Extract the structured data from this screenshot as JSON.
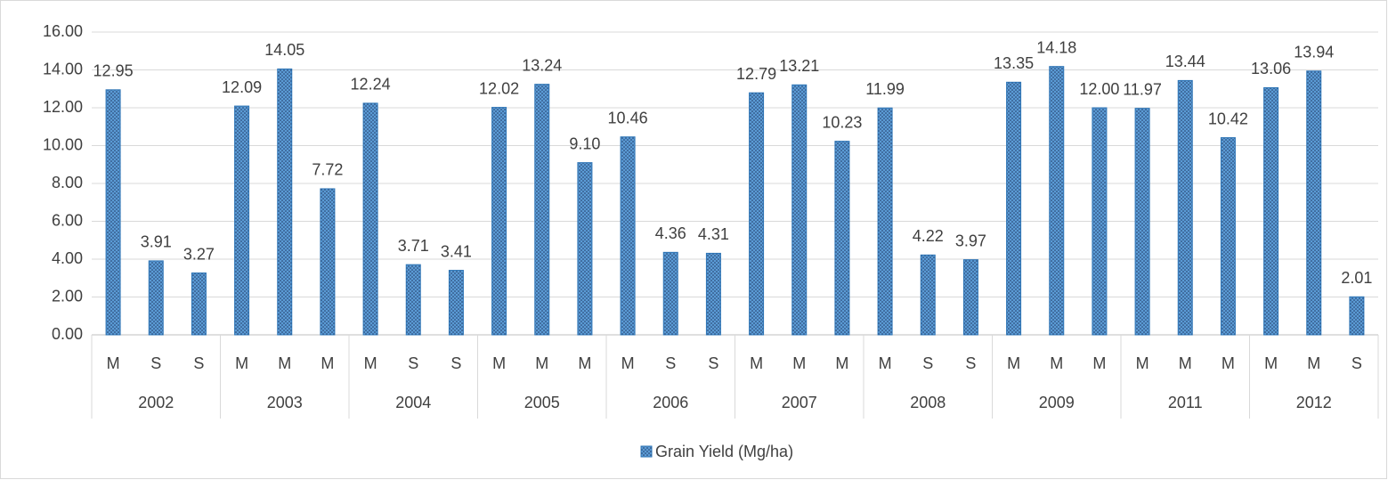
{
  "chart_data": {
    "type": "bar",
    "groups": [
      {
        "label": "2002",
        "categories": [
          "M",
          "S",
          "S"
        ]
      },
      {
        "label": "2003",
        "categories": [
          "M",
          "M",
          "M"
        ]
      },
      {
        "label": "2004",
        "categories": [
          "M",
          "S",
          "S"
        ]
      },
      {
        "label": "2005",
        "categories": [
          "M",
          "M",
          "M"
        ]
      },
      {
        "label": "2006",
        "categories": [
          "M",
          "S",
          "S"
        ]
      },
      {
        "label": "2007",
        "categories": [
          "M",
          "M",
          "M"
        ]
      },
      {
        "label": "2008",
        "categories": [
          "M",
          "S",
          "S"
        ]
      },
      {
        "label": "2009",
        "categories": [
          "M",
          "M",
          "M"
        ]
      },
      {
        "label": "2011",
        "categories": [
          "M",
          "M",
          "M"
        ]
      },
      {
        "label": "2012",
        "categories": [
          "M",
          "M",
          "S"
        ]
      }
    ],
    "series": [
      {
        "name": "Grain Yield (Mg/ha)",
        "color": "#5b9bd5",
        "values": [
          12.95,
          3.91,
          3.27,
          12.09,
          14.05,
          7.72,
          12.24,
          3.71,
          3.41,
          12.02,
          13.24,
          9.1,
          10.46,
          4.36,
          4.31,
          12.79,
          13.21,
          10.23,
          11.99,
          4.22,
          3.97,
          13.35,
          14.18,
          12.0,
          11.97,
          13.44,
          10.42,
          13.06,
          13.94,
          2.01
        ],
        "value_labels": [
          "12.95",
          "3.91",
          "3.27",
          "12.09",
          "14.05",
          "7.72",
          "12.24",
          "3.71",
          "3.41",
          "12.02",
          "13.24",
          "9.10",
          "10.46",
          "4.36",
          "4.31",
          "12.79",
          "13.21",
          "10.23",
          "11.99",
          "4.22",
          "3.97",
          "13.35",
          "14.18",
          "12.00",
          "11.97",
          "13.44",
          "10.42",
          "13.06",
          "13.94",
          "2.01"
        ]
      }
    ],
    "ylim": [
      0,
      16
    ],
    "yticks": [
      {
        "value": 0,
        "label": "0.00"
      },
      {
        "value": 2,
        "label": "2.00"
      },
      {
        "value": 4,
        "label": "4.00"
      },
      {
        "value": 6,
        "label": "6.00"
      },
      {
        "value": 8,
        "label": "8.00"
      },
      {
        "value": 10,
        "label": "10.00"
      },
      {
        "value": 12,
        "label": "12.00"
      },
      {
        "value": 14,
        "label": "14.00"
      },
      {
        "value": 16,
        "label": "16.00"
      }
    ],
    "grid": true
  }
}
